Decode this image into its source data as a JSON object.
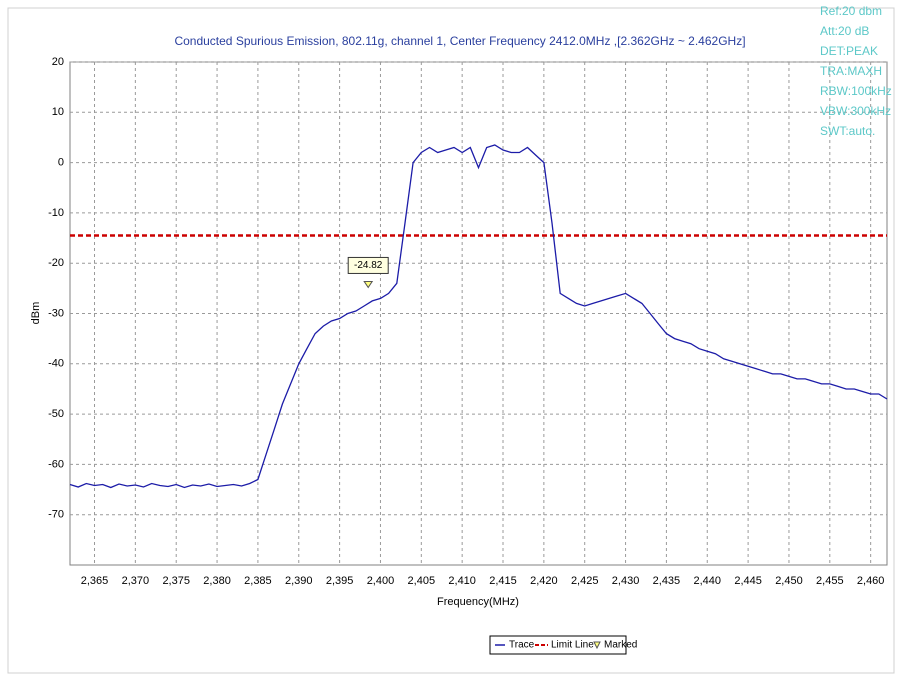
{
  "chart_data": {
    "type": "line",
    "title": "Conducted Spurious Emission, 802.11g, channel 1, Center Frequency 2412.0MHz ,[2.362GHz ~ 2.462GHz]",
    "xlabel": "Frequency(MHz)",
    "ylabel": "dBm",
    "annotations": [
      "Ref:20 dbm",
      "Att:20 dB",
      "DET:PEAK",
      "TRA:MAXH",
      "RBW:100kHz",
      "VBW:300kHz",
      "SWT:auto."
    ],
    "x": [
      2362,
      2363,
      2364,
      2365,
      2366,
      2367,
      2368,
      2369,
      2370,
      2371,
      2372,
      2373,
      2374,
      2375,
      2376,
      2377,
      2378,
      2379,
      2380,
      2381,
      2382,
      2383,
      2384,
      2385,
      2386,
      2387,
      2388,
      2389,
      2390,
      2391,
      2392,
      2393,
      2394,
      2395,
      2396,
      2397,
      2398,
      2399,
      2400,
      2401,
      2402,
      2403,
      2404,
      2405,
      2406,
      2407,
      2408,
      2409,
      2410,
      2411,
      2412,
      2413,
      2414,
      2415,
      2416,
      2417,
      2418,
      2419,
      2420,
      2421,
      2422,
      2423,
      2424,
      2425,
      2426,
      2427,
      2428,
      2429,
      2430,
      2431,
      2432,
      2433,
      2434,
      2435,
      2436,
      2437,
      2438,
      2439,
      2440,
      2441,
      2442,
      2443,
      2444,
      2445,
      2446,
      2447,
      2448,
      2449,
      2450,
      2451,
      2452,
      2453,
      2454,
      2455,
      2456,
      2457,
      2458,
      2459,
      2460,
      2461,
      2462
    ],
    "series": [
      {
        "name": "Trace",
        "color": "#1c1ca8",
        "values": [
          -64,
          -64.5,
          -63.8,
          -64.2,
          -64,
          -64.6,
          -63.9,
          -64.3,
          -64.1,
          -64.5,
          -63.8,
          -64.2,
          -64.4,
          -64,
          -64.6,
          -64.1,
          -64.3,
          -63.9,
          -64.4,
          -64.2,
          -64,
          -64.3,
          -63.8,
          -63,
          -58,
          -53,
          -48,
          -44,
          -40,
          -37,
          -34,
          -32.5,
          -31.5,
          -31,
          -30,
          -29.5,
          -28.5,
          -27.5,
          -27,
          -26,
          -24,
          -12,
          0,
          2,
          3,
          2,
          2.5,
          3,
          2,
          3,
          -1,
          3,
          3.5,
          2.5,
          2,
          2,
          3,
          1.5,
          0,
          -12,
          -26,
          -27,
          -28,
          -28.5,
          -28,
          -27.5,
          -27,
          -26.5,
          -26,
          -27,
          -28,
          -30,
          -32,
          -34,
          -35,
          -35.5,
          -36,
          -37,
          -37.5,
          -38,
          -39,
          -39.5,
          -40,
          -40.5,
          -41,
          -41.5,
          -42,
          -42,
          -42.5,
          -43,
          -43,
          -43.5,
          -44,
          -44,
          -44.5,
          -45,
          -45,
          -45.5,
          -46,
          -46,
          -47
        ]
      }
    ],
    "limit_line": {
      "name": "Limit Line",
      "value": -14.5,
      "color": "#cc0000"
    },
    "marker": {
      "name": "Marked",
      "x": 2398.5,
      "value": -24.82,
      "color": "#ffff80"
    },
    "xlim": [
      2362,
      2462
    ],
    "ylim": [
      -80,
      20
    ],
    "xticks": [
      {
        "value": 2365,
        "label": "2,365"
      },
      {
        "value": 2370,
        "label": "2,370"
      },
      {
        "value": 2375,
        "label": "2,375"
      },
      {
        "value": 2380,
        "label": "2,380"
      },
      {
        "value": 2385,
        "label": "2,385"
      },
      {
        "value": 2390,
        "label": "2,390"
      },
      {
        "value": 2395,
        "label": "2,395"
      },
      {
        "value": 2400,
        "label": "2,400"
      },
      {
        "value": 2405,
        "label": "2,405"
      },
      {
        "value": 2410,
        "label": "2,410"
      },
      {
        "value": 2415,
        "label": "2,415"
      },
      {
        "value": 2420,
        "label": "2,420"
      },
      {
        "value": 2425,
        "label": "2,425"
      },
      {
        "value": 2430,
        "label": "2,430"
      },
      {
        "value": 2435,
        "label": "2,435"
      },
      {
        "value": 2440,
        "label": "2,440"
      },
      {
        "value": 2445,
        "label": "2,445"
      },
      {
        "value": 2450,
        "label": "2,450"
      },
      {
        "value": 2455,
        "label": "2,455"
      },
      {
        "value": 2460,
        "label": "2,460"
      }
    ],
    "yticks": [
      20,
      10,
      0,
      -10,
      -20,
      -30,
      -40,
      -50,
      -60,
      -70
    ],
    "grid": true
  }
}
